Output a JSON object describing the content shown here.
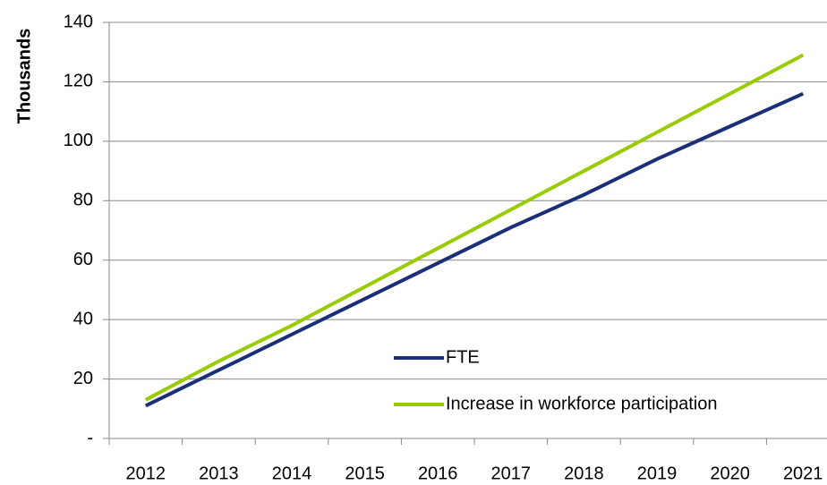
{
  "chart_data": {
    "type": "line",
    "y_label": "Thousands",
    "categories": [
      "2012",
      "2013",
      "2014",
      "2015",
      "2016",
      "2017",
      "2018",
      "2019",
      "2020",
      "2021"
    ],
    "series": [
      {
        "name": "FTE",
        "color": "#1a2f78",
        "values": [
          11,
          23,
          35,
          47,
          59,
          71,
          82,
          94,
          105,
          116
        ]
      },
      {
        "name": "Increase in workforce participation",
        "color": "#99cc00",
        "values": [
          13,
          26,
          38,
          51,
          64,
          77,
          90,
          103,
          116,
          129
        ]
      }
    ],
    "ylim": [
      0,
      140
    ],
    "yticks": [
      {
        "value": 0,
        "label": "-"
      },
      20,
      40,
      60,
      80,
      100,
      120,
      140
    ],
    "grid": true,
    "legend": "bottom-center"
  }
}
